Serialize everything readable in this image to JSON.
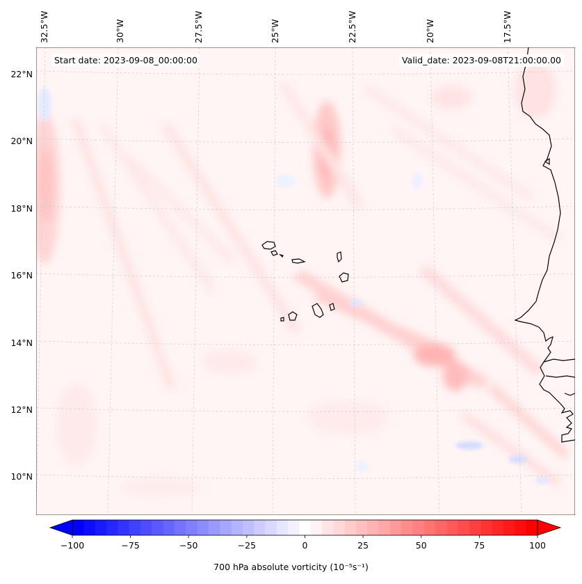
{
  "header": {
    "start_date": "Start date: 2023-09-08_00:00:00",
    "valid_date": "Valid_date: 2023-09-08T21:00:00.00"
  },
  "map": {
    "longitude_labels": [
      "32.5°W",
      "30°W",
      "27.5°W",
      "25°W",
      "22.5°W",
      "20°W",
      "17.5°W"
    ],
    "latitude_labels": [
      "22°N",
      "20°N",
      "18°N",
      "16°N",
      "14°N",
      "12°N",
      "10°N"
    ],
    "features": [
      "coastline-west-africa",
      "cape-verde-islands"
    ]
  },
  "colorbar": {
    "ticks": [
      "−100",
      "−75",
      "−50",
      "−25",
      "0",
      "25",
      "50",
      "75",
      "100"
    ],
    "min": -100,
    "max": 100,
    "levels": 41,
    "label": "700 hPa absolute vorticity (10⁻⁵s⁻¹)",
    "colormap": "bwr",
    "low_color": "#0000ff",
    "mid_color": "#ffffff",
    "high_color": "#ff0000"
  }
}
